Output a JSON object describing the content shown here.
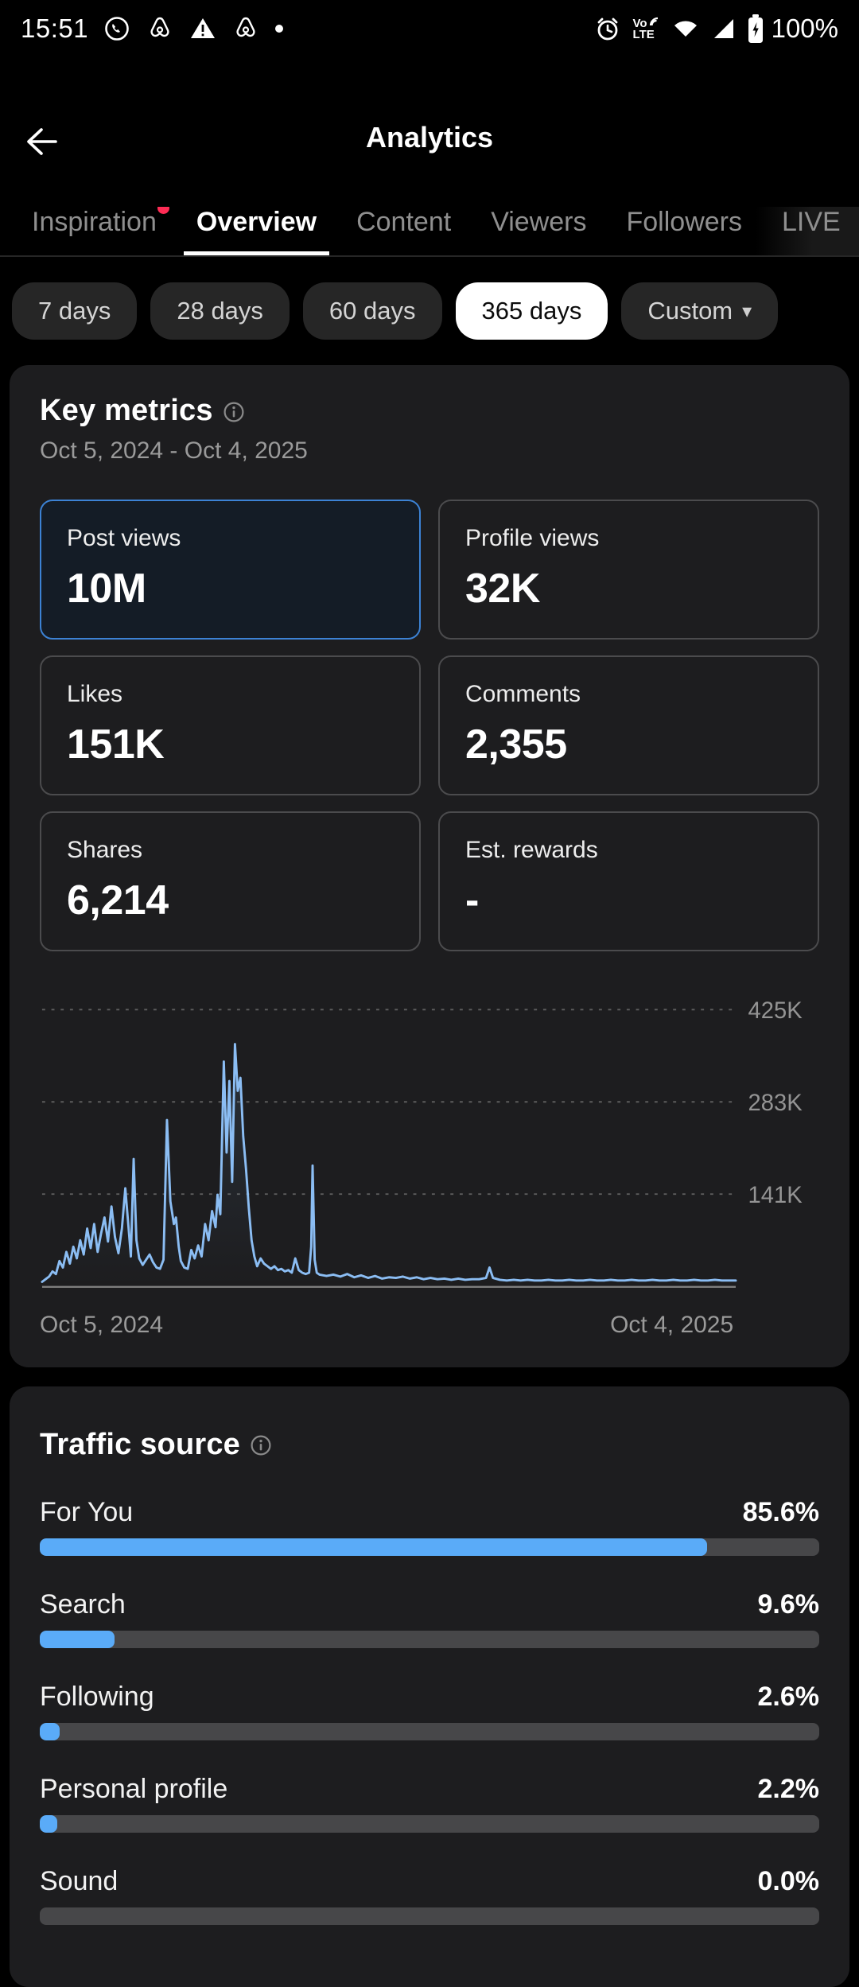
{
  "status_bar": {
    "time": "15:51",
    "battery_label": "100%",
    "volte_top": "Vo",
    "volte_bottom": "LTE",
    "left_icons": [
      "whatsapp-icon",
      "airbnb-icon",
      "warning-icon",
      "airbnb-outline-icon",
      "overflow-dot-icon"
    ],
    "right_icons": [
      "alarm-icon",
      "volte-icon",
      "wifi-icon",
      "cellular-signal-icon",
      "battery-charging-icon"
    ]
  },
  "header": {
    "title": "Analytics"
  },
  "tabs": {
    "items": [
      {
        "label": "Inspiration",
        "active": false,
        "badge": true
      },
      {
        "label": "Overview",
        "active": true,
        "badge": false
      },
      {
        "label": "Content",
        "active": false,
        "badge": false
      },
      {
        "label": "Viewers",
        "active": false,
        "badge": false
      },
      {
        "label": "Followers",
        "active": false,
        "badge": false
      },
      {
        "label": "LIVE",
        "active": false,
        "badge": false,
        "clipped": true
      }
    ]
  },
  "filters": {
    "dropdown_caret": "▾",
    "options": [
      {
        "label": "7 days",
        "selected": false
      },
      {
        "label": "28 days",
        "selected": false
      },
      {
        "label": "60 days",
        "selected": false
      },
      {
        "label": "365 days",
        "selected": true
      },
      {
        "label": "Custom",
        "selected": false,
        "dropdown": true
      }
    ]
  },
  "key_metrics": {
    "title": "Key metrics",
    "date_range": "Oct 5, 2024 - Oct 4, 2025",
    "tiles": [
      {
        "label": "Post views",
        "value": "10M",
        "selected": true
      },
      {
        "label": "Profile views",
        "value": "32K",
        "selected": false
      },
      {
        "label": "Likes",
        "value": "151K",
        "selected": false
      },
      {
        "label": "Comments",
        "value": "2,355",
        "selected": false
      },
      {
        "label": "Shares",
        "value": "6,214",
        "selected": false
      },
      {
        "label": "Est. rewards",
        "value": "-",
        "selected": false
      }
    ]
  },
  "chart_data": {
    "type": "line",
    "metric": "Post views",
    "x_start_label": "Oct 5, 2024",
    "x_end_label": "Oct 4, 2025",
    "y_tick_labels": [
      "141K",
      "283K",
      "425K"
    ],
    "y_ticks_k": [
      141,
      283,
      425
    ],
    "ylim_k": [
      0,
      440
    ],
    "x_unit": "fraction of date range Oct 5 2024 → Oct 4 2025",
    "y_unit": "daily post views, thousands",
    "grid": "dashed horizontal",
    "legend": "none",
    "series": [
      {
        "name": "Post views",
        "points": [
          [
            0.0,
            6
          ],
          [
            0.005,
            10
          ],
          [
            0.01,
            14
          ],
          [
            0.015,
            22
          ],
          [
            0.02,
            18
          ],
          [
            0.025,
            38
          ],
          [
            0.03,
            28
          ],
          [
            0.035,
            52
          ],
          [
            0.04,
            34
          ],
          [
            0.045,
            60
          ],
          [
            0.05,
            42
          ],
          [
            0.055,
            70
          ],
          [
            0.06,
            48
          ],
          [
            0.065,
            88
          ],
          [
            0.07,
            58
          ],
          [
            0.075,
            95
          ],
          [
            0.08,
            52
          ],
          [
            0.085,
            80
          ],
          [
            0.09,
            105
          ],
          [
            0.095,
            68
          ],
          [
            0.1,
            122
          ],
          [
            0.105,
            75
          ],
          [
            0.11,
            50
          ],
          [
            0.115,
            88
          ],
          [
            0.12,
            150
          ],
          [
            0.125,
            85
          ],
          [
            0.128,
            45
          ],
          [
            0.132,
            195
          ],
          [
            0.136,
            70
          ],
          [
            0.14,
            42
          ],
          [
            0.145,
            32
          ],
          [
            0.15,
            40
          ],
          [
            0.155,
            48
          ],
          [
            0.16,
            36
          ],
          [
            0.165,
            28
          ],
          [
            0.17,
            26
          ],
          [
            0.175,
            40
          ],
          [
            0.18,
            255
          ],
          [
            0.185,
            130
          ],
          [
            0.19,
            95
          ],
          [
            0.193,
            105
          ],
          [
            0.197,
            60
          ],
          [
            0.2,
            38
          ],
          [
            0.205,
            28
          ],
          [
            0.21,
            26
          ],
          [
            0.215,
            55
          ],
          [
            0.22,
            42
          ],
          [
            0.225,
            62
          ],
          [
            0.23,
            45
          ],
          [
            0.235,
            95
          ],
          [
            0.24,
            70
          ],
          [
            0.245,
            115
          ],
          [
            0.25,
            90
          ],
          [
            0.253,
            140
          ],
          [
            0.257,
            110
          ],
          [
            0.262,
            345
          ],
          [
            0.266,
            205
          ],
          [
            0.27,
            315
          ],
          [
            0.274,
            160
          ],
          [
            0.278,
            372
          ],
          [
            0.282,
            300
          ],
          [
            0.286,
            320
          ],
          [
            0.29,
            230
          ],
          [
            0.294,
            180
          ],
          [
            0.298,
            120
          ],
          [
            0.302,
            70
          ],
          [
            0.306,
            45
          ],
          [
            0.31,
            30
          ],
          [
            0.315,
            42
          ],
          [
            0.32,
            34
          ],
          [
            0.325,
            30
          ],
          [
            0.33,
            26
          ],
          [
            0.335,
            30
          ],
          [
            0.34,
            24
          ],
          [
            0.345,
            26
          ],
          [
            0.35,
            22
          ],
          [
            0.355,
            24
          ],
          [
            0.36,
            20
          ],
          [
            0.365,
            42
          ],
          [
            0.37,
            24
          ],
          [
            0.375,
            20
          ],
          [
            0.38,
            18
          ],
          [
            0.385,
            20
          ],
          [
            0.388,
            60
          ],
          [
            0.39,
            185
          ],
          [
            0.393,
            40
          ],
          [
            0.396,
            20
          ],
          [
            0.4,
            17
          ],
          [
            0.41,
            15
          ],
          [
            0.42,
            17
          ],
          [
            0.43,
            14
          ],
          [
            0.44,
            18
          ],
          [
            0.45,
            13
          ],
          [
            0.46,
            16
          ],
          [
            0.47,
            12
          ],
          [
            0.48,
            15
          ],
          [
            0.49,
            11
          ],
          [
            0.5,
            13
          ],
          [
            0.51,
            12
          ],
          [
            0.52,
            14
          ],
          [
            0.53,
            11
          ],
          [
            0.54,
            13
          ],
          [
            0.55,
            10
          ],
          [
            0.56,
            12
          ],
          [
            0.57,
            10
          ],
          [
            0.58,
            11
          ],
          [
            0.59,
            9
          ],
          [
            0.6,
            11
          ],
          [
            0.61,
            9
          ],
          [
            0.62,
            10
          ],
          [
            0.63,
            10
          ],
          [
            0.64,
            12
          ],
          [
            0.645,
            28
          ],
          [
            0.65,
            12
          ],
          [
            0.66,
            9
          ],
          [
            0.67,
            8
          ],
          [
            0.68,
            9
          ],
          [
            0.69,
            8
          ],
          [
            0.7,
            9
          ],
          [
            0.71,
            8
          ],
          [
            0.72,
            8
          ],
          [
            0.73,
            9
          ],
          [
            0.74,
            8
          ],
          [
            0.75,
            8
          ],
          [
            0.76,
            9
          ],
          [
            0.77,
            8
          ],
          [
            0.78,
            8
          ],
          [
            0.79,
            9
          ],
          [
            0.8,
            8
          ],
          [
            0.81,
            8
          ],
          [
            0.82,
            9
          ],
          [
            0.83,
            8
          ],
          [
            0.84,
            8
          ],
          [
            0.85,
            9
          ],
          [
            0.86,
            8
          ],
          [
            0.87,
            8
          ],
          [
            0.88,
            9
          ],
          [
            0.89,
            8
          ],
          [
            0.9,
            8
          ],
          [
            0.91,
            9
          ],
          [
            0.92,
            8
          ],
          [
            0.93,
            8
          ],
          [
            0.94,
            9
          ],
          [
            0.95,
            8
          ],
          [
            0.96,
            8
          ],
          [
            0.97,
            9
          ],
          [
            0.98,
            8
          ],
          [
            0.99,
            8
          ],
          [
            1.0,
            8
          ]
        ]
      }
    ]
  },
  "traffic_source": {
    "title": "Traffic source",
    "rows": [
      {
        "label": "For You",
        "value": "85.6%",
        "pct": 85.6
      },
      {
        "label": "Search",
        "value": "9.6%",
        "pct": 9.6
      },
      {
        "label": "Following",
        "value": "2.6%",
        "pct": 2.6
      },
      {
        "label": "Personal profile",
        "value": "2.2%",
        "pct": 2.2
      },
      {
        "label": "Sound",
        "value": "0.0%",
        "pct": 0
      }
    ]
  },
  "colors": {
    "accent_blue_border": "#3c82d4",
    "selected_tile_bg": "#141c26",
    "bar_fill_blue": "#5aabf8",
    "bar_track": "#474749",
    "chart_line_blue": "#8bbdf3",
    "badge_red": "#fe2c55",
    "card_bg": "#1d1d1f",
    "page_bg": "#000000",
    "selected_pill_bg": "#ffffff",
    "muted_text": "#9a9a9a"
  }
}
